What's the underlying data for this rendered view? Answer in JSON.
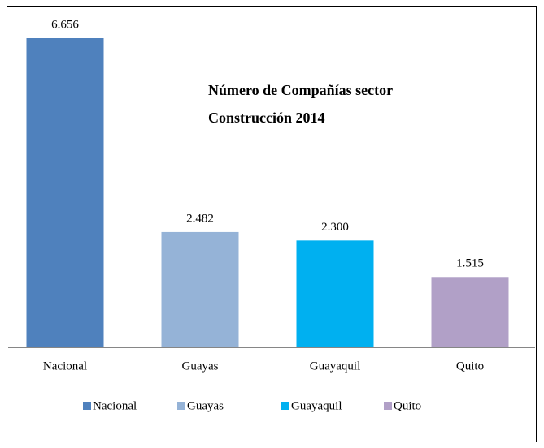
{
  "chart_data": {
    "type": "bar",
    "title": "Número de Compañías sector Construcción 2014",
    "categories": [
      "Nacional",
      "Guayas",
      "Guayaquil",
      "Quito"
    ],
    "values": [
      6656,
      2482,
      2300,
      1515
    ],
    "value_labels": [
      "6.656",
      "2.482",
      "2.300",
      "1.515"
    ],
    "colors": [
      "#4f81bd",
      "#95b3d7",
      "#00b0f0",
      "#b1a0c7"
    ],
    "legend": "bottom"
  }
}
